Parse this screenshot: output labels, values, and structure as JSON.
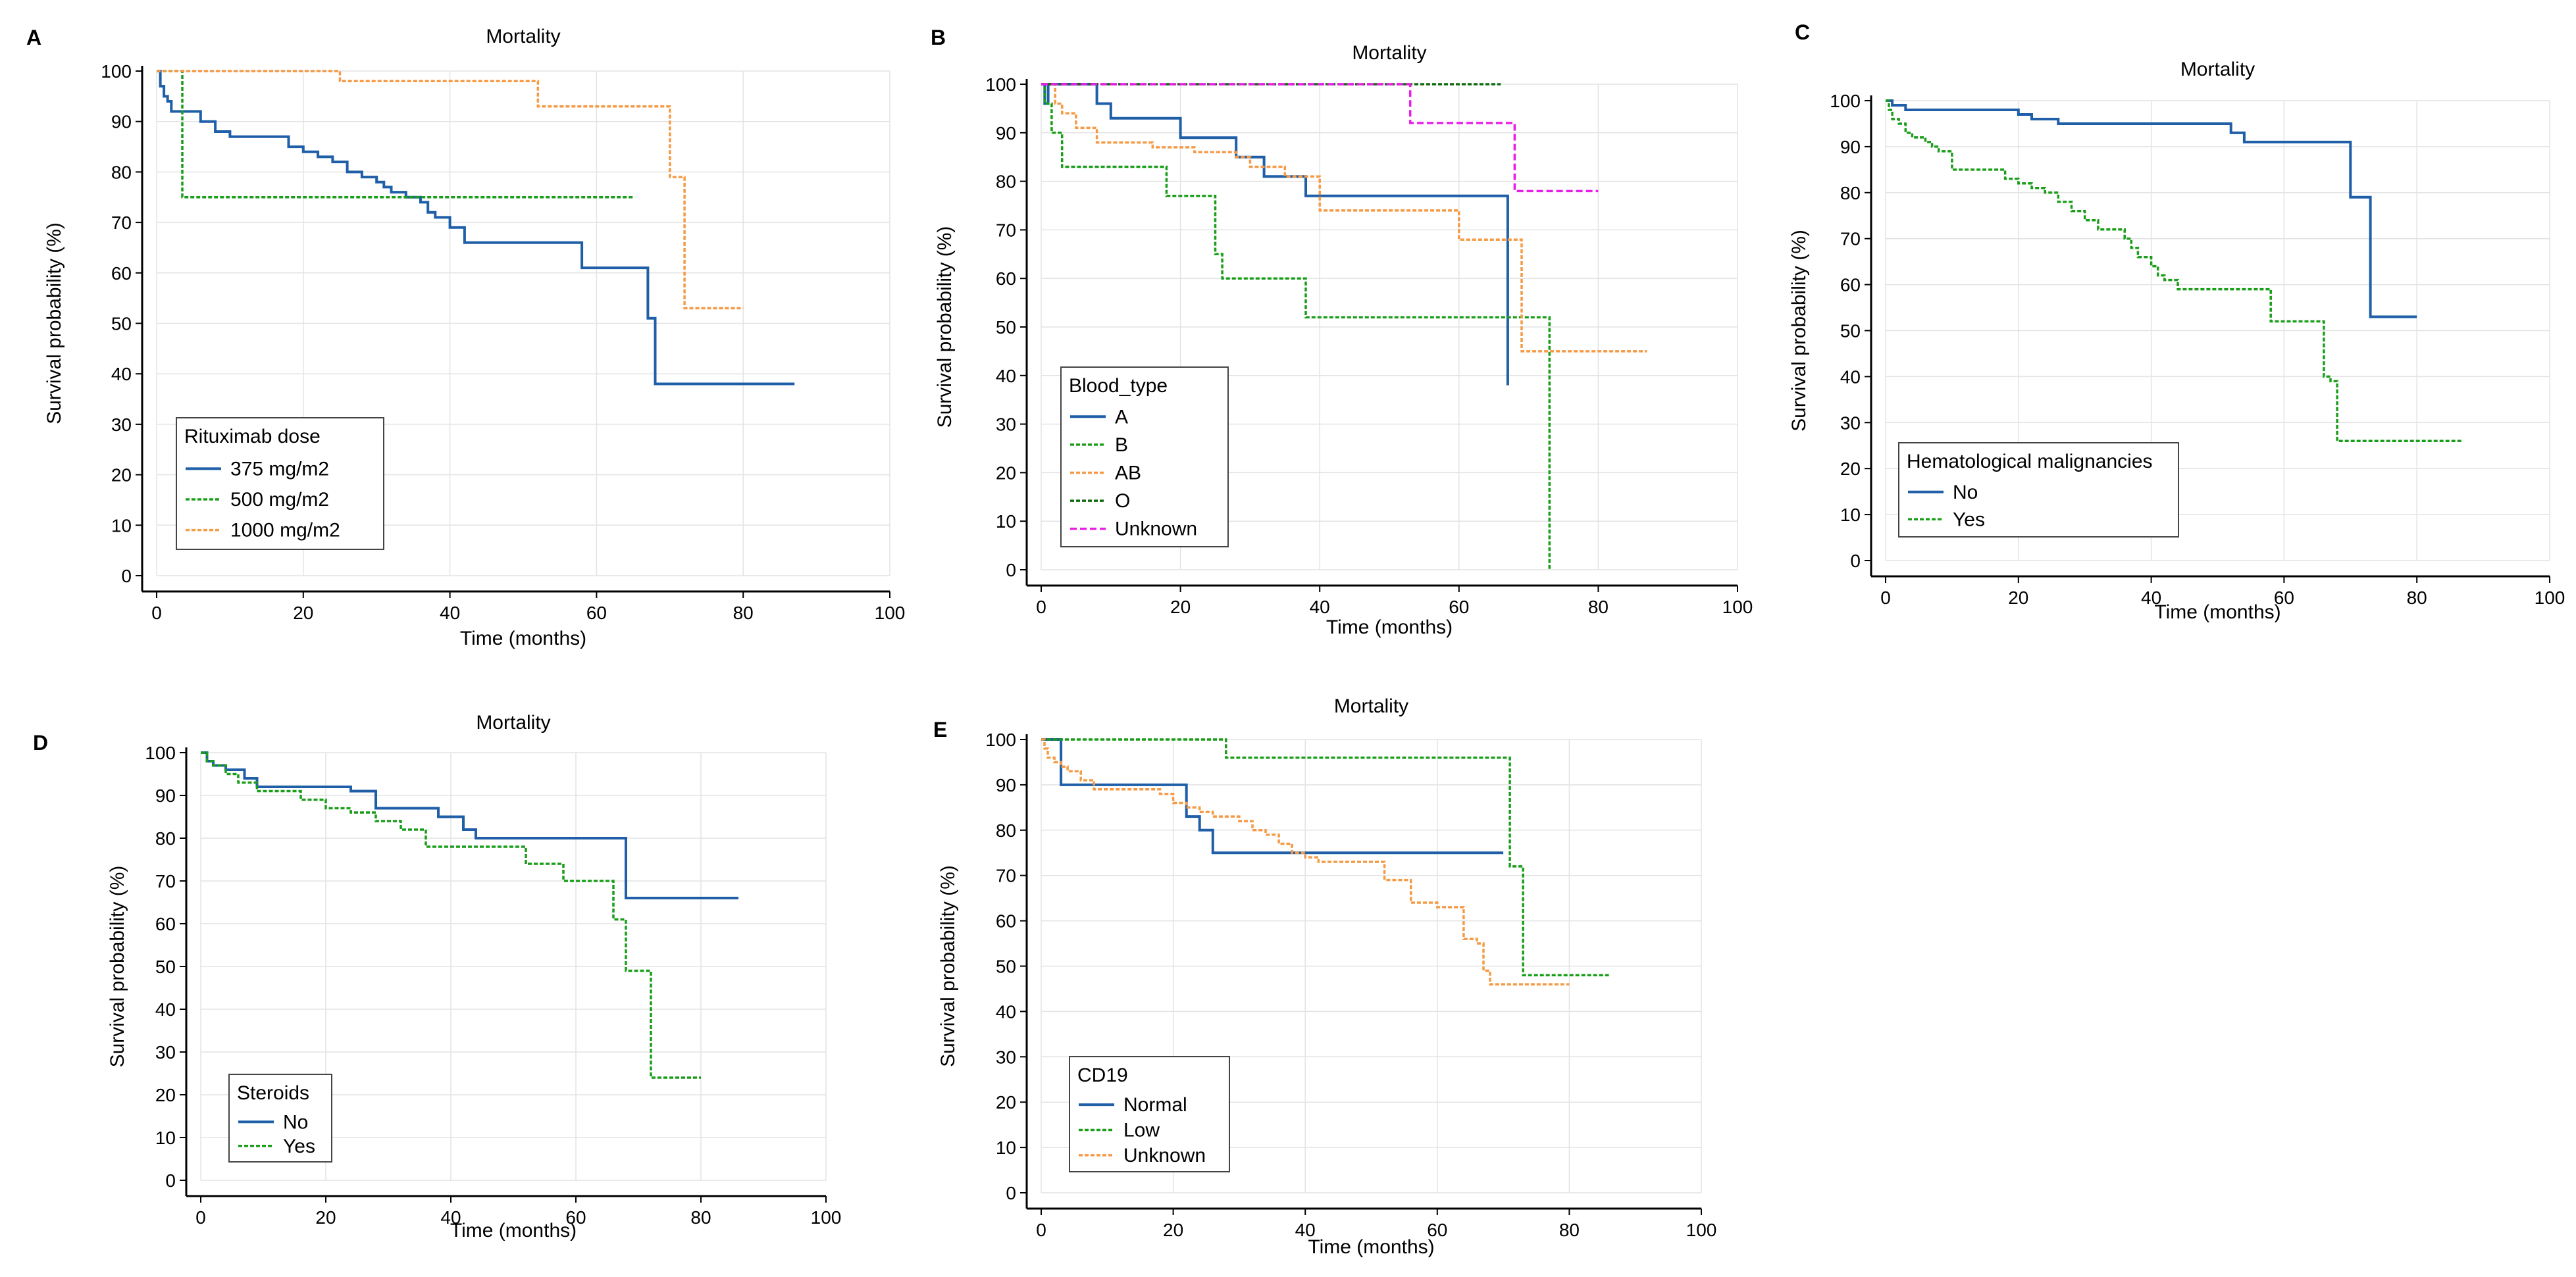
{
  "colors": {
    "blue": "#1f5fa8",
    "green": "#1a9e1a",
    "orange": "#f59a45",
    "darkgreen": "#116b11",
    "magenta": "#e81ee6"
  },
  "chart_data": [
    {
      "id": "A",
      "type": "line",
      "title": "Mortality",
      "xlabel": "Time (months)",
      "ylabel": "Survival probability (%)",
      "xlim": [
        0,
        100
      ],
      "ylim": [
        0,
        100
      ],
      "xticks": [
        0,
        20,
        40,
        60,
        80,
        100
      ],
      "yticks": [
        0,
        10,
        20,
        30,
        40,
        50,
        60,
        70,
        80,
        90,
        100
      ],
      "legend_title": "Rituximab dose",
      "legend_position": "bottom-left",
      "series": [
        {
          "name": "375 mg/m2",
          "color": "blue",
          "style": "solid",
          "x": [
            0,
            0.5,
            1,
            1.5,
            2,
            3,
            6,
            8,
            10,
            18,
            20,
            22,
            24,
            26,
            28,
            30,
            31,
            32,
            34,
            36,
            37,
            38,
            40,
            42,
            58,
            60,
            67,
            68,
            87
          ],
          "y": [
            100,
            97,
            95,
            94,
            92,
            92,
            90,
            88,
            87,
            85,
            84,
            83,
            82,
            80,
            79,
            78,
            77,
            76,
            75,
            74,
            72,
            71,
            69,
            66,
            61,
            61,
            51,
            38,
            38
          ]
        },
        {
          "name": "500 mg/m2",
          "color": "green",
          "style": "dotted",
          "x": [
            0,
            3,
            3.5,
            65
          ],
          "y": [
            100,
            100,
            75,
            75
          ]
        },
        {
          "name": "1000 mg/m2",
          "color": "orange",
          "style": "dotted",
          "x": [
            0,
            25,
            52,
            70,
            72,
            80
          ],
          "y": [
            100,
            98,
            93,
            79,
            53,
            53
          ]
        }
      ]
    },
    {
      "id": "B",
      "type": "line",
      "title": "Mortality",
      "xlabel": "Time (months)",
      "ylabel": "Survival probability (%)",
      "xlim": [
        0,
        100
      ],
      "ylim": [
        0,
        100
      ],
      "xticks": [
        0,
        20,
        40,
        60,
        80,
        100
      ],
      "yticks": [
        0,
        10,
        20,
        30,
        40,
        50,
        60,
        70,
        80,
        90,
        100
      ],
      "legend_title": "Blood_type",
      "legend_position": "bottom-left",
      "series": [
        {
          "name": "A",
          "color": "blue",
          "style": "solid",
          "x": [
            0,
            0.5,
            1,
            8,
            10,
            20,
            28,
            32,
            38,
            66,
            67
          ],
          "y": [
            100,
            96,
            100,
            96,
            93,
            89,
            85,
            81,
            77,
            77,
            38
          ]
        },
        {
          "name": "B",
          "color": "green",
          "style": "dotted",
          "x": [
            0,
            0.5,
            1.5,
            3,
            18,
            25,
            26,
            28,
            38,
            70,
            73
          ],
          "y": [
            100,
            96,
            90,
            83,
            77,
            65,
            60,
            60,
            52,
            52,
            0
          ]
        },
        {
          "name": "AB",
          "color": "orange",
          "style": "dotted",
          "x": [
            0,
            2,
            3,
            5,
            8,
            16,
            22,
            28,
            30,
            35,
            40,
            50,
            60,
            69,
            70,
            87
          ],
          "y": [
            100,
            96,
            94,
            91,
            88,
            87,
            86,
            85,
            83,
            81,
            74,
            74,
            68,
            45,
            45,
            45
          ]
        },
        {
          "name": "O",
          "color": "darkgreen",
          "style": "dotted",
          "x": [
            0,
            66
          ],
          "y": [
            100,
            100
          ]
        },
        {
          "name": "Unknown",
          "color": "magenta",
          "style": "dashed",
          "x": [
            0,
            53,
            68,
            80
          ],
          "y": [
            100,
            92,
            78,
            78
          ]
        }
      ]
    },
    {
      "id": "C",
      "type": "line",
      "title": "Mortality",
      "xlabel": "Time (months)",
      "ylabel": "Survival probability (%)",
      "xlim": [
        0,
        100
      ],
      "ylim": [
        0,
        100
      ],
      "xticks": [
        0,
        20,
        40,
        60,
        80,
        100
      ],
      "yticks": [
        0,
        10,
        20,
        30,
        40,
        50,
        60,
        70,
        80,
        90,
        100
      ],
      "legend_title": "Hematological malignancies",
      "legend_position": "bottom-left",
      "series": [
        {
          "name": "No",
          "color": "blue",
          "style": "solid",
          "x": [
            0,
            1,
            3,
            20,
            22,
            26,
            52,
            54,
            70,
            73,
            80
          ],
          "y": [
            100,
            99,
            98,
            97,
            96,
            95,
            93,
            91,
            79,
            53,
            53
          ]
        },
        {
          "name": "Yes",
          "color": "green",
          "style": "dotted",
          "x": [
            0,
            0.5,
            1,
            2,
            3,
            4,
            6,
            7,
            8,
            10,
            18,
            20,
            22,
            24,
            26,
            28,
            30,
            32,
            36,
            37,
            38,
            40,
            41,
            42,
            44,
            58,
            60,
            66,
            67,
            68,
            87
          ],
          "y": [
            100,
            98,
            96,
            95,
            93,
            92,
            91,
            90,
            89,
            85,
            83,
            82,
            81,
            80,
            78,
            76,
            74,
            72,
            70,
            68,
            66,
            64,
            62,
            61,
            59,
            52,
            52,
            40,
            39,
            26,
            26
          ]
        }
      ]
    },
    {
      "id": "D",
      "type": "line",
      "title": "Mortality",
      "xlabel": "Time (months)",
      "ylabel": "Survival probability (%)",
      "xlim": [
        0,
        100
      ],
      "ylim": [
        0,
        100
      ],
      "xticks": [
        0,
        20,
        40,
        60,
        80,
        100
      ],
      "yticks": [
        0,
        10,
        20,
        30,
        40,
        50,
        60,
        70,
        80,
        90,
        100
      ],
      "legend_title": "Steroids",
      "legend_position": "bottom-left",
      "series": [
        {
          "name": "No",
          "color": "blue",
          "style": "solid",
          "x": [
            0,
            1,
            2,
            4,
            7,
            9,
            24,
            28,
            38,
            42,
            44,
            67,
            68,
            86
          ],
          "y": [
            100,
            98,
            97,
            96,
            94,
            92,
            91,
            87,
            85,
            82,
            80,
            80,
            66,
            66
          ]
        },
        {
          "name": "Yes",
          "color": "green",
          "style": "dotted",
          "x": [
            0,
            1,
            2,
            4,
            6,
            9,
            16,
            20,
            24,
            28,
            32,
            36,
            52,
            58,
            66,
            68,
            70,
            72,
            80
          ],
          "y": [
            100,
            98,
            97,
            95,
            93,
            91,
            89,
            87,
            86,
            84,
            82,
            78,
            74,
            70,
            61,
            49,
            49,
            24,
            24
          ]
        }
      ]
    },
    {
      "id": "E",
      "type": "line",
      "title": "Mortality",
      "xlabel": "Time (months)",
      "ylabel": "Survival probability (%)",
      "xlim": [
        0,
        100
      ],
      "ylim": [
        0,
        100
      ],
      "xticks": [
        0,
        20,
        40,
        60,
        80,
        100
      ],
      "yticks": [
        0,
        10,
        20,
        30,
        40,
        50,
        60,
        70,
        80,
        90,
        100
      ],
      "legend_title": "CD19",
      "legend_position": "bottom-left",
      "series": [
        {
          "name": "Normal",
          "color": "blue",
          "style": "solid",
          "x": [
            0,
            2,
            3,
            20,
            22,
            24,
            26,
            70
          ],
          "y": [
            100,
            100,
            90,
            90,
            83,
            80,
            75,
            75
          ]
        },
        {
          "name": "Low",
          "color": "green",
          "style": "dotted",
          "x": [
            0,
            28,
            70,
            71,
            73,
            86
          ],
          "y": [
            100,
            96,
            96,
            72,
            48,
            48
          ]
        },
        {
          "name": "Unknown",
          "color": "orange",
          "style": "dotted",
          "x": [
            0,
            0.5,
            1,
            2,
            3,
            4,
            6,
            8,
            18,
            20,
            22,
            24,
            26,
            30,
            32,
            34,
            36,
            38,
            40,
            42,
            52,
            56,
            60,
            64,
            66,
            67,
            68,
            80
          ],
          "y": [
            100,
            98,
            96,
            95,
            94,
            93,
            91,
            89,
            88,
            86,
            85,
            84,
            83,
            82,
            80,
            79,
            77,
            75,
            74,
            73,
            69,
            64,
            63,
            56,
            55,
            49,
            46,
            46
          ]
        }
      ]
    }
  ]
}
